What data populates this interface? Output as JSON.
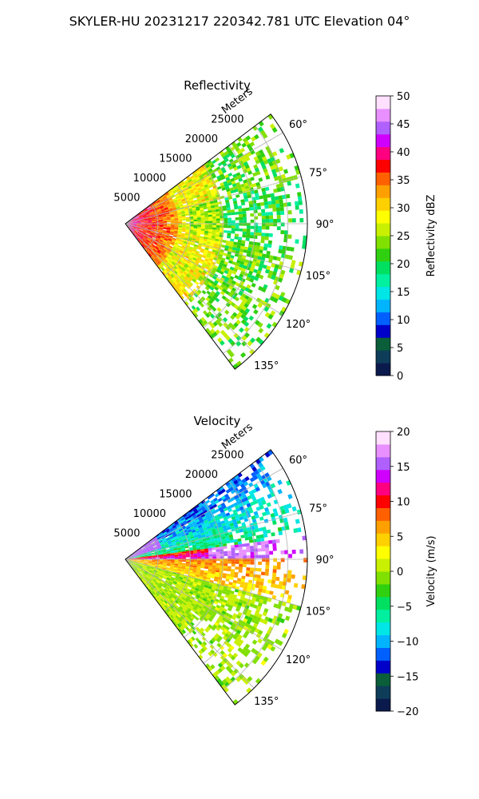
{
  "title": "SKYLER-HU  20231217  220342.781 UTC Elevation 04°",
  "chart_data": [
    {
      "type": "heatmap",
      "title": "Reflectivity",
      "radial_label": "Meters",
      "range_ticks": [
        "5000",
        "10000",
        "15000",
        "20000",
        "25000"
      ],
      "range_values": [
        5000,
        10000,
        15000,
        20000,
        25000
      ],
      "rmax": 28000,
      "azimuth_ticks": [
        "60°",
        "75°",
        "90°",
        "105°",
        "120°",
        "135°"
      ],
      "azimuth_values": [
        60,
        75,
        90,
        105,
        120,
        135
      ],
      "azimuth_range": [
        53,
        143
      ],
      "colorbar": {
        "label": "Reflectivity dBZ",
        "min": 0,
        "max": 50,
        "ticks": [
          "0",
          "5",
          "10",
          "15",
          "20",
          "25",
          "30",
          "35",
          "40",
          "45",
          "50"
        ],
        "tick_values": [
          0,
          5,
          10,
          15,
          20,
          25,
          30,
          35,
          40,
          45,
          50
        ],
        "colors": [
          "#0b1a4d",
          "#0e3d5a",
          "#0a5e3a",
          "#0000c8",
          "#0060ff",
          "#00b4ff",
          "#00e5e5",
          "#00f0a0",
          "#00e060",
          "#30d010",
          "#80e000",
          "#c8f000",
          "#ffff00",
          "#ffd000",
          "#ffa000",
          "#ff6000",
          "#ff0000",
          "#ff0080",
          "#d000ff",
          "#b060ff",
          "#e890ff",
          "#ffe0ff"
        ]
      }
    },
    {
      "type": "heatmap",
      "title": "Velocity",
      "radial_label": "Meters",
      "range_ticks": [
        "5000",
        "10000",
        "15000",
        "20000",
        "25000"
      ],
      "range_values": [
        5000,
        10000,
        15000,
        20000,
        25000
      ],
      "rmax": 28000,
      "azimuth_ticks": [
        "60°",
        "75°",
        "90°",
        "105°",
        "120°",
        "135°"
      ],
      "azimuth_values": [
        60,
        75,
        90,
        105,
        120,
        135
      ],
      "azimuth_range": [
        53,
        143
      ],
      "colorbar": {
        "label": "Velocity (m/s)",
        "min": -20,
        "max": 20,
        "ticks": [
          "−20",
          "−15",
          "−10",
          "−5",
          "0",
          "5",
          "10",
          "15",
          "20"
        ],
        "tick_values": [
          -20,
          -15,
          -10,
          -5,
          0,
          5,
          10,
          15,
          20
        ],
        "colors": [
          "#0b1a4d",
          "#0e3d5a",
          "#0a5e3a",
          "#0000c8",
          "#0060ff",
          "#00b4ff",
          "#00e5e5",
          "#00f0a0",
          "#00e060",
          "#30d010",
          "#80e000",
          "#c8f000",
          "#ffff00",
          "#ffd000",
          "#ffa000",
          "#ff6000",
          "#ff0000",
          "#ff0080",
          "#d000ff",
          "#b060ff",
          "#e890ff",
          "#ffe0ff"
        ]
      }
    }
  ]
}
